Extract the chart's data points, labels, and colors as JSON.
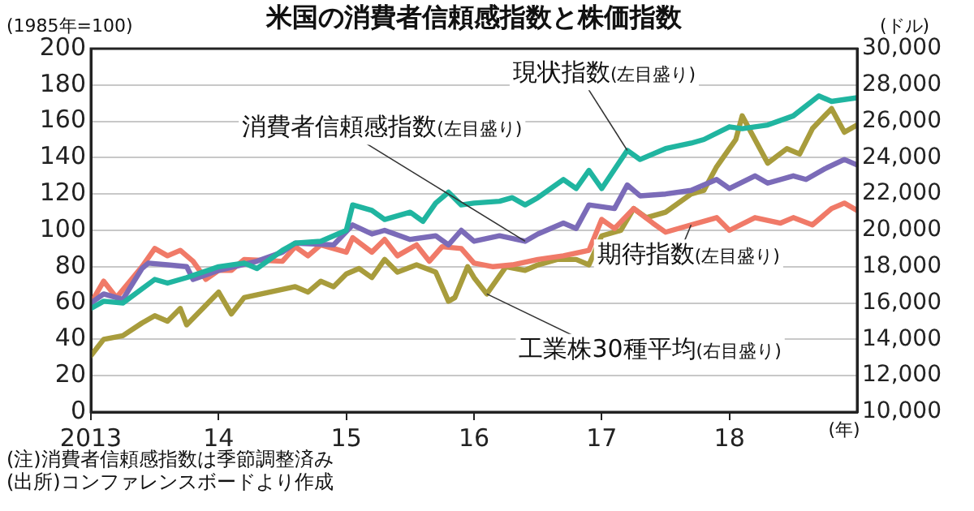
{
  "chart_data": {
    "type": "line",
    "title": "米国の消費者信頼感指数と株価指数",
    "ylabel": "(1985年=100)",
    "y2label": "(ドル)",
    "xlabel": "(年)",
    "xlim": [
      2013,
      2019
    ],
    "xticks": [
      {
        "value": 2013,
        "label": "2013"
      },
      {
        "value": 2014,
        "label": "14"
      },
      {
        "value": 2015,
        "label": "15"
      },
      {
        "value": 2016,
        "label": "16"
      },
      {
        "value": 2017,
        "label": "17"
      },
      {
        "value": 2018,
        "label": "18"
      }
    ],
    "ylim": [
      0,
      200
    ],
    "yticks": [
      0,
      20,
      40,
      60,
      80,
      100,
      120,
      140,
      160,
      180,
      200
    ],
    "y2lim": [
      10000,
      30000
    ],
    "y2ticks": [
      {
        "value": 10000,
        "label": "10,000"
      },
      {
        "value": 12000,
        "label": "12,000"
      },
      {
        "value": 14000,
        "label": "14,000"
      },
      {
        "value": 16000,
        "label": "16,000"
      },
      {
        "value": 18000,
        "label": "18,000"
      },
      {
        "value": 20000,
        "label": "20,000"
      },
      {
        "value": 22000,
        "label": "22,000"
      },
      {
        "value": 24000,
        "label": "24,000"
      },
      {
        "value": 26000,
        "label": "26,000"
      },
      {
        "value": 28000,
        "label": "28,000"
      },
      {
        "value": 30000,
        "label": "30,000"
      }
    ],
    "grid": "y",
    "legend": false,
    "marker": "none",
    "line_style": "solid",
    "series": [
      {
        "name": "現状指数(左目盛り)",
        "color": "#20b5a0",
        "x": [
          2013.0,
          2013.1,
          2013.25,
          2013.5,
          2013.6,
          2013.75,
          2014.0,
          2014.2,
          2014.3,
          2014.5,
          2014.6,
          2014.8,
          2015.0,
          2015.05,
          2015.2,
          2015.3,
          2015.5,
          2015.6,
          2015.7,
          2015.8,
          2015.9,
          2016.0,
          2016.2,
          2016.3,
          2016.4,
          2016.5,
          2016.7,
          2016.8,
          2016.9,
          2017.0,
          2017.2,
          2017.3,
          2017.5,
          2017.7,
          2017.8,
          2018.0,
          2018.1,
          2018.3,
          2018.5,
          2018.7,
          2018.8,
          2019.0
        ],
        "values": [
          57,
          61,
          60,
          73,
          71,
          74,
          80,
          82,
          79,
          89,
          93,
          94,
          100,
          114,
          111,
          106,
          110,
          105,
          115,
          121,
          114,
          115,
          116,
          118,
          114,
          118,
          128,
          123,
          133,
          123,
          144,
          139,
          145,
          148,
          150,
          157,
          156,
          158,
          163,
          174,
          171,
          173
        ]
      },
      {
        "name": "消費者信頼感指数(左目盛り)",
        "color": "#7b6bb8",
        "x": [
          2013.0,
          2013.1,
          2013.25,
          2013.4,
          2013.45,
          2013.6,
          2013.75,
          2013.8,
          2014.0,
          2014.3,
          2014.5,
          2014.6,
          2014.9,
          2015.05,
          2015.2,
          2015.3,
          2015.5,
          2015.7,
          2015.8,
          2015.9,
          2016.0,
          2016.2,
          2016.4,
          2016.5,
          2016.7,
          2016.8,
          2016.9,
          2017.1,
          2017.2,
          2017.3,
          2017.5,
          2017.7,
          2017.9,
          2018.0,
          2018.2,
          2018.3,
          2018.5,
          2018.6,
          2018.75,
          2018.9,
          2019.0
        ],
        "values": [
          60,
          65,
          62,
          79,
          82,
          81,
          80,
          73,
          78,
          83,
          88,
          93,
          92,
          103,
          98,
          100,
          95,
          97,
          92,
          100,
          94,
          97,
          94,
          98,
          104,
          101,
          114,
          112,
          125,
          119,
          120,
          122,
          128,
          123,
          130,
          126,
          130,
          128,
          134,
          139,
          136
        ]
      },
      {
        "name": "期待指数(左目盛り)",
        "color": "#f07a68",
        "x": [
          2013.0,
          2013.1,
          2013.2,
          2013.4,
          2013.5,
          2013.6,
          2013.7,
          2013.8,
          2013.9,
          2014.0,
          2014.1,
          2014.2,
          2014.5,
          2014.6,
          2014.7,
          2014.8,
          2015.0,
          2015.05,
          2015.2,
          2015.3,
          2015.4,
          2015.55,
          2015.65,
          2015.75,
          2015.9,
          2016.0,
          2016.15,
          2016.3,
          2016.5,
          2016.7,
          2016.9,
          2017.0,
          2017.1,
          2017.25,
          2017.4,
          2017.5,
          2017.7,
          2017.9,
          2018.0,
          2018.2,
          2018.4,
          2018.5,
          2018.65,
          2018.8,
          2018.9,
          2019.0
        ],
        "values": [
          60,
          72,
          63,
          80,
          90,
          86,
          89,
          83,
          73,
          78,
          78,
          84,
          83,
          91,
          86,
          92,
          88,
          96,
          88,
          95,
          86,
          92,
          83,
          91,
          90,
          82,
          80,
          81,
          84,
          86,
          89,
          106,
          101,
          112,
          104,
          99,
          103,
          107,
          100,
          107,
          104,
          107,
          103,
          112,
          115,
          111
        ]
      },
      {
        "name": "工業株30種平均(右目盛り)",
        "color": "#a89c3c",
        "axis": "y2",
        "x": [
          2013.0,
          2013.1,
          2013.25,
          2013.4,
          2013.5,
          2013.6,
          2013.7,
          2013.75,
          2014.0,
          2014.1,
          2014.2,
          2014.4,
          2014.6,
          2014.7,
          2014.8,
          2014.9,
          2015.0,
          2015.1,
          2015.2,
          2015.3,
          2015.4,
          2015.55,
          2015.7,
          2015.8,
          2015.85,
          2015.95,
          2016.0,
          2016.1,
          2016.25,
          2016.4,
          2016.5,
          2016.65,
          2016.8,
          2016.9,
          2017.0,
          2017.15,
          2017.25,
          2017.35,
          2017.5,
          2017.7,
          2017.8,
          2017.9,
          2018.0,
          2018.05,
          2018.1,
          2018.2,
          2018.3,
          2018.45,
          2018.55,
          2018.65,
          2018.8,
          2018.9,
          2019.0
        ],
        "values": [
          13100,
          14000,
          14200,
          14900,
          15300,
          15000,
          15700,
          14800,
          16600,
          15400,
          16300,
          16600,
          16900,
          16600,
          17200,
          16900,
          17600,
          17900,
          17400,
          18400,
          17700,
          18100,
          17700,
          16100,
          16300,
          18000,
          17400,
          16500,
          18000,
          17800,
          18100,
          18400,
          18400,
          18100,
          19700,
          20000,
          21200,
          20700,
          21000,
          22000,
          22200,
          23500,
          24500,
          25000,
          26300,
          25000,
          23700,
          24500,
          24200,
          25600,
          26700,
          25400,
          25800
        ]
      }
    ],
    "annotations": [
      "(注)消費者信頼感指数は季節調整済み",
      "(出所)コンファレンスボードより作成"
    ]
  }
}
